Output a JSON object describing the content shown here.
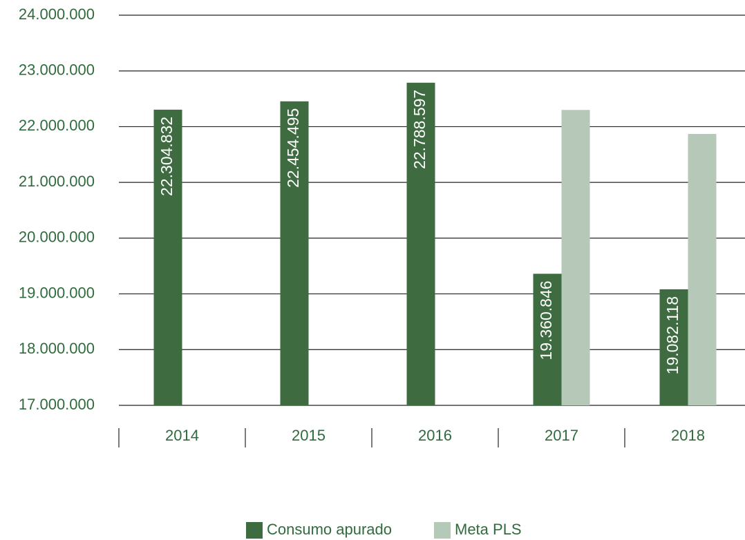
{
  "chart_data": {
    "type": "bar",
    "categories": [
      "2014",
      "2015",
      "2016",
      "2017",
      "2018"
    ],
    "series": [
      {
        "name": "Consumo apurado",
        "color": "#3e6b40",
        "values": [
          22304832,
          22454495,
          22788597,
          19360846,
          19082118
        ],
        "value_labels": [
          "22.304.832",
          "22.454.495",
          "22.788.597",
          "19.360.846",
          "19.082.118"
        ]
      },
      {
        "name": "Meta PLS",
        "color": "#b6c8b7",
        "values": [
          null,
          null,
          null,
          22300000,
          21870000
        ]
      }
    ],
    "ylim": [
      17000000,
      24000000
    ],
    "yticks": [
      {
        "value": 17000000,
        "label": "17.000.000"
      },
      {
        "value": 18000000,
        "label": "18.000.000"
      },
      {
        "value": 19000000,
        "label": "19.000.000"
      },
      {
        "value": 20000000,
        "label": "20.000.000"
      },
      {
        "value": 21000000,
        "label": "21.000.000"
      },
      {
        "value": 22000000,
        "label": "22.000.000"
      },
      {
        "value": 23000000,
        "label": "23.000.000"
      },
      {
        "value": 24000000,
        "label": "24.000.000"
      }
    ],
    "grid": true
  }
}
